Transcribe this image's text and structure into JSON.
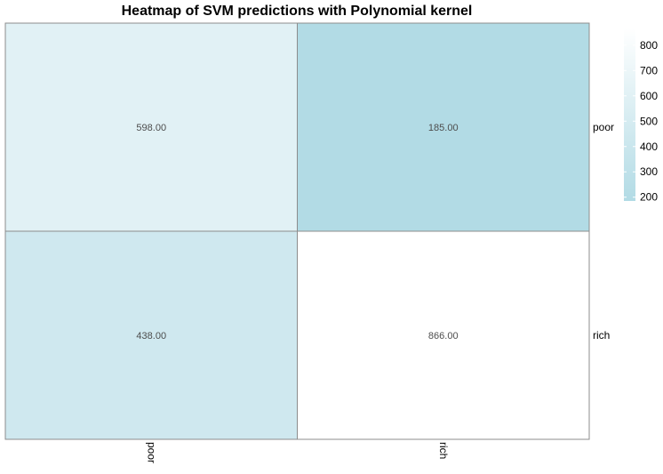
{
  "chart_data": {
    "type": "heatmap",
    "title": "Heatmap of SVM predictions with Polynomial kernel",
    "x_categories": [
      "poor",
      "rich"
    ],
    "y_categories": [
      "poor",
      "rich"
    ],
    "cells": [
      {
        "x": "poor",
        "y": "poor",
        "value": 598,
        "label": "598.00"
      },
      {
        "x": "rich",
        "y": "poor",
        "value": 185,
        "label": "185.00"
      },
      {
        "x": "poor",
        "y": "rich",
        "value": 438,
        "label": "438.00"
      },
      {
        "x": "rich",
        "y": "rich",
        "value": 866,
        "label": "866.00"
      }
    ],
    "color_scale": {
      "low_color": "#b2dbe5",
      "high_color": "#ffffff",
      "min": 185,
      "max": 866
    },
    "legend": {
      "placement": "right",
      "ticks": [
        200,
        300,
        400,
        500,
        600,
        700,
        800
      ],
      "tick_labels": [
        "200",
        "300",
        "400",
        "500",
        "600",
        "700",
        "800"
      ]
    }
  }
}
